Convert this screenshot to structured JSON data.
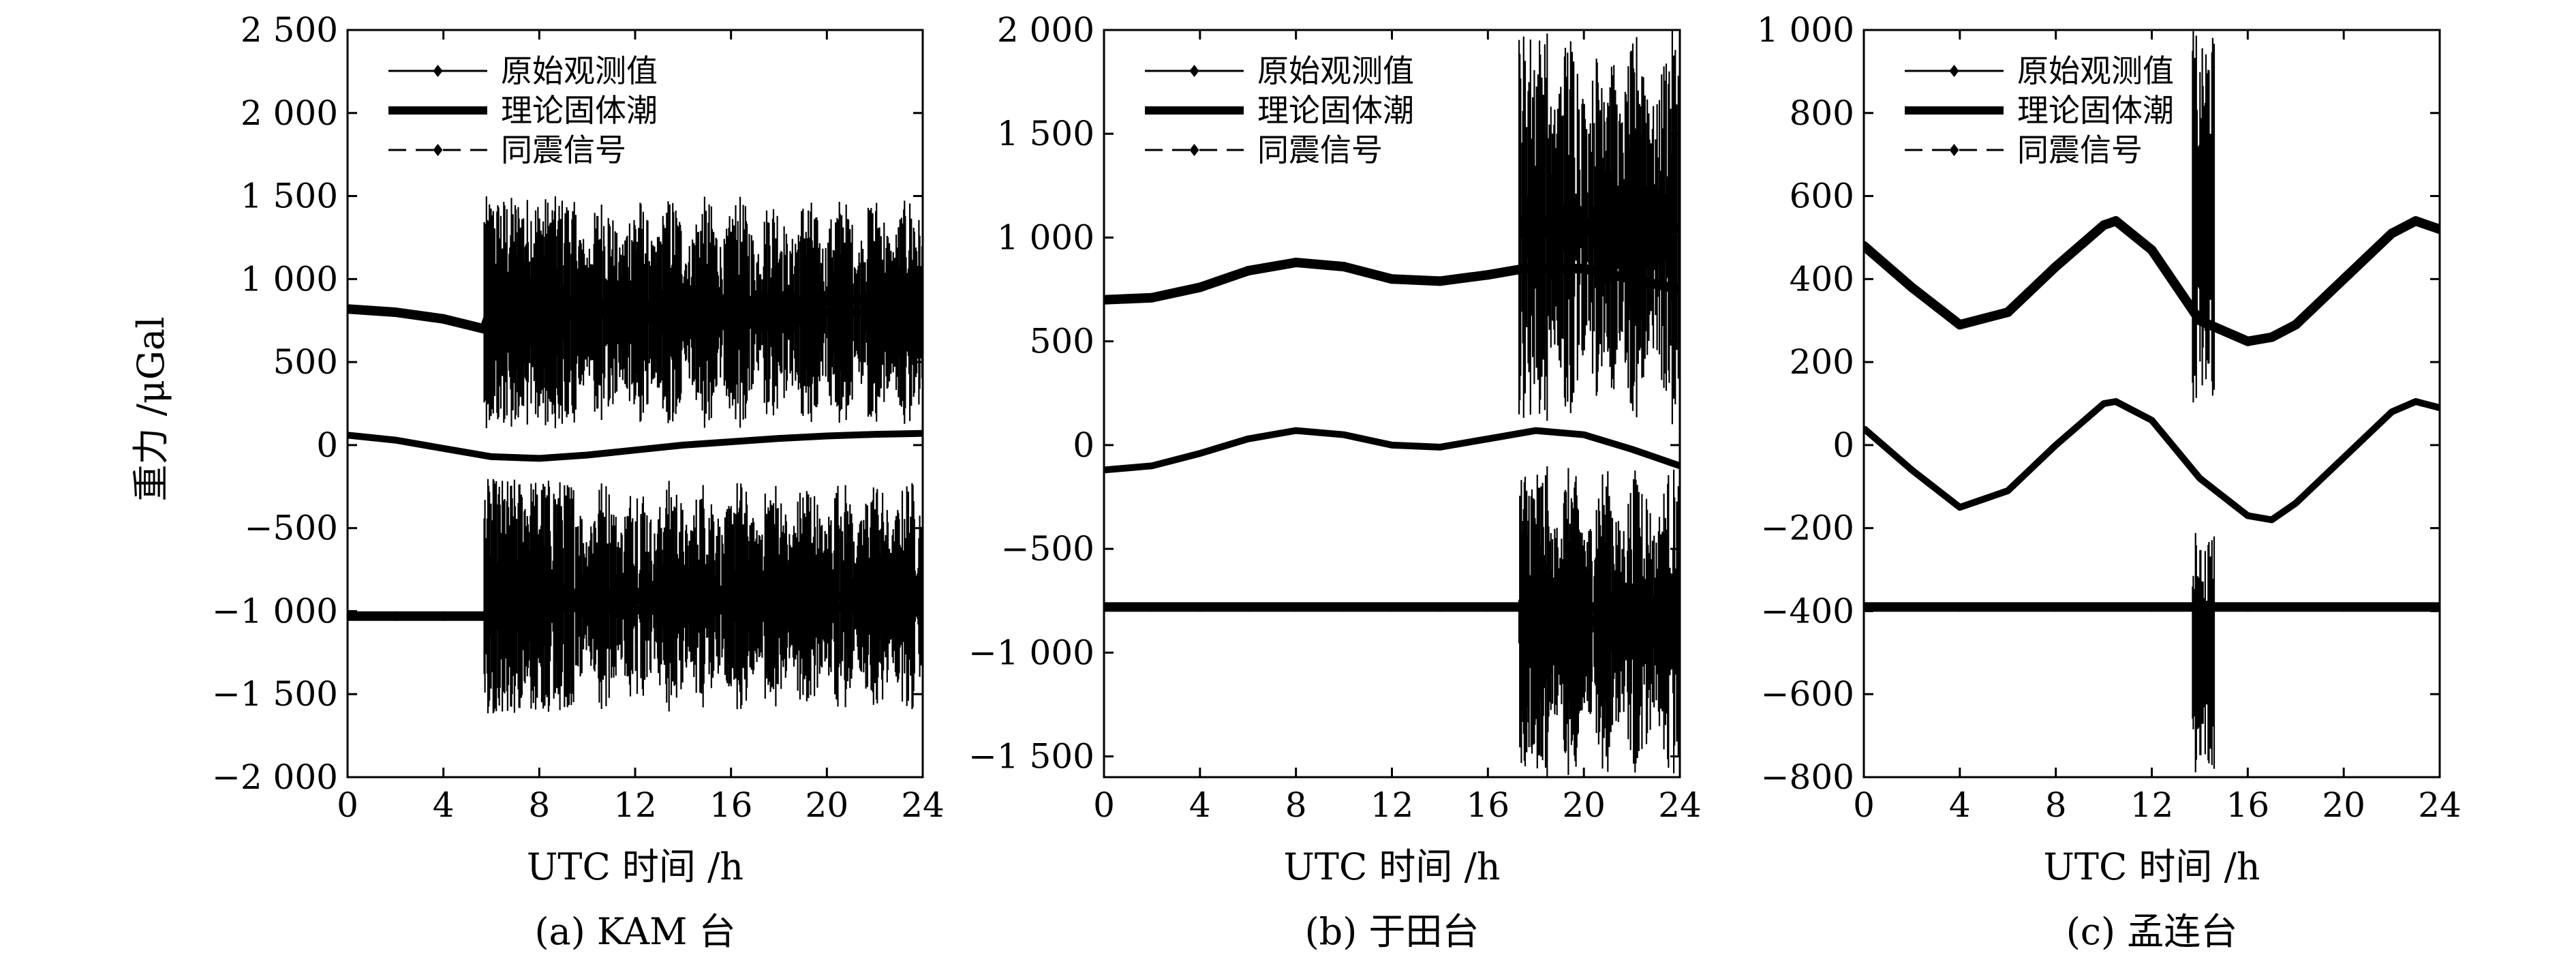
{
  "figure": {
    "ylabel": "重力 /μGal"
  },
  "chart_data": [
    {
      "type": "line",
      "caption": "(a) KAM 台",
      "xlabel": "UTC 时间 /h",
      "ylabel": "重力 /μGal",
      "xlim": [
        0,
        24
      ],
      "ylim": [
        -2000,
        2500
      ],
      "xticks": [
        0,
        4,
        8,
        12,
        16,
        20,
        24
      ],
      "xtick_labels": [
        "0",
        "4",
        "8",
        "12",
        "16",
        "20",
        "24"
      ],
      "yticks": [
        -2000,
        -1500,
        -1000,
        -500,
        0,
        500,
        1000,
        1500,
        2000,
        2500
      ],
      "ytick_labels": [
        "−2 000",
        "−1 500",
        "−1 000",
        "−500",
        "0",
        "500",
        "1 000",
        "1 500",
        "2 000",
        "2 500"
      ],
      "legend": {
        "position": "top-left",
        "entries": [
          "原始观测值",
          "理论固体潮",
          "同震信号"
        ]
      },
      "series": [
        {
          "name": "原始观测值",
          "style": "solid-diamond",
          "x": [
            0,
            2,
            4,
            5.7,
            6,
            8,
            10,
            12,
            14,
            16,
            18,
            20,
            22,
            24
          ],
          "y": [
            820,
            800,
            760,
            700,
            820,
            880,
            860,
            840,
            830,
            850,
            860,
            870,
            880,
            880
          ]
        },
        {
          "name": "理论固体潮",
          "style": "thick",
          "x": [
            0,
            2,
            4,
            6,
            8,
            10,
            12,
            14,
            16,
            18,
            20,
            22,
            24
          ],
          "y": [
            60,
            30,
            -20,
            -70,
            -80,
            -60,
            -30,
            0,
            20,
            40,
            55,
            65,
            70
          ]
        },
        {
          "name": "同震信号",
          "style": "dashed-diamond",
          "x": [
            0,
            2,
            4,
            5.7,
            6,
            8,
            10,
            12,
            14,
            16,
            18,
            20,
            22,
            24
          ],
          "y": [
            -1030,
            -1030,
            -1030,
            -1030,
            -1000,
            -970,
            -980,
            -990,
            -1000,
            -990,
            -980,
            -975,
            -970,
            -970
          ]
        }
      ],
      "noise_bursts": [
        {
          "series": "原始观测值",
          "x_start": 5.7,
          "x_end": 24,
          "y_max": 1500,
          "y_min": 100
        },
        {
          "series": "同震信号",
          "x_start": 5.7,
          "x_end": 24,
          "y_max": -200,
          "y_min": -1620
        }
      ]
    },
    {
      "type": "line",
      "caption": "(b) 于田台",
      "xlabel": "UTC 时间 /h",
      "ylabel": "",
      "xlim": [
        0,
        24
      ],
      "ylim": [
        -1600,
        2000
      ],
      "xticks": [
        0,
        4,
        8,
        12,
        16,
        20,
        24
      ],
      "xtick_labels": [
        "0",
        "4",
        "8",
        "12",
        "16",
        "20",
        "24"
      ],
      "yticks": [
        -1500,
        -1000,
        -500,
        0,
        500,
        1000,
        1500,
        2000
      ],
      "ytick_labels": [
        "−1 500",
        "−1 000",
        "−500",
        "0",
        "500",
        "1 000",
        "1 500",
        "2 000"
      ],
      "legend": {
        "position": "top-left",
        "entries": [
          "原始观测值",
          "理论固体潮",
          "同震信号"
        ]
      },
      "series": [
        {
          "name": "原始观测值",
          "style": "solid-diamond",
          "x": [
            0,
            2,
            4,
            6,
            8,
            10,
            12,
            14,
            16,
            17.5,
            20,
            22,
            24
          ],
          "y": [
            700,
            710,
            760,
            840,
            880,
            860,
            800,
            790,
            820,
            850,
            850,
            800,
            750
          ]
        },
        {
          "name": "理论固体潮",
          "style": "thick",
          "x": [
            0,
            2,
            4,
            6,
            8,
            10,
            12,
            14,
            16,
            18,
            20,
            22,
            24
          ],
          "y": [
            -120,
            -100,
            -40,
            30,
            70,
            50,
            0,
            -10,
            30,
            70,
            50,
            -20,
            -100
          ]
        },
        {
          "name": "同震信号",
          "style": "dashed-diamond",
          "x": [
            0,
            2,
            4,
            6,
            8,
            10,
            12,
            14,
            16,
            17.5,
            20,
            22,
            24
          ],
          "y": [
            -780,
            -780,
            -780,
            -780,
            -780,
            -780,
            -780,
            -780,
            -780,
            -780,
            -780,
            -780,
            -780
          ]
        }
      ],
      "noise_bursts": [
        {
          "series": "原始观测值",
          "x_start": 17.3,
          "x_end": 24,
          "y_max": 2000,
          "y_min": 100
        },
        {
          "series": "同震信号",
          "x_start": 17.3,
          "x_end": 24,
          "y_max": -100,
          "y_min": -1600
        }
      ]
    },
    {
      "type": "line",
      "caption": "(c) 孟连台",
      "xlabel": "UTC 时间 /h",
      "ylabel": "",
      "xlim": [
        0,
        24
      ],
      "ylim": [
        -800,
        1000
      ],
      "xticks": [
        0,
        4,
        8,
        12,
        16,
        20,
        24
      ],
      "xtick_labels": [
        "0",
        "4",
        "8",
        "12",
        "16",
        "20",
        "24"
      ],
      "yticks": [
        -800,
        -600,
        -400,
        -200,
        0,
        200,
        400,
        600,
        800,
        1000
      ],
      "ytick_labels": [
        "−800",
        "−600",
        "−400",
        "−200",
        "0",
        "200",
        "400",
        "600",
        "800",
        "1 000"
      ],
      "legend": {
        "position": "top-left",
        "entries": [
          "原始观测值",
          "理论固体潮",
          "同震信号"
        ]
      },
      "series": [
        {
          "name": "原始观测值",
          "style": "solid-diamond",
          "x": [
            0,
            2,
            4,
            6,
            8,
            10,
            10.5,
            12,
            14,
            16,
            17,
            18,
            20,
            22,
            23,
            24
          ],
          "y": [
            480,
            380,
            290,
            320,
            430,
            530,
            540,
            470,
            300,
            250,
            260,
            290,
            400,
            510,
            540,
            520
          ]
        },
        {
          "name": "理论固体潮",
          "style": "thick",
          "x": [
            0,
            2,
            4,
            6,
            8,
            10,
            10.5,
            12,
            14,
            16,
            17,
            18,
            20,
            22,
            23,
            24
          ],
          "y": [
            40,
            -60,
            -150,
            -110,
            0,
            100,
            105,
            60,
            -80,
            -170,
            -180,
            -140,
            -30,
            80,
            105,
            90
          ]
        },
        {
          "name": "同震信号",
          "style": "dashed-diamond",
          "x": [
            0,
            4,
            8,
            12,
            16,
            20,
            24
          ],
          "y": [
            -390,
            -390,
            -390,
            -390,
            -390,
            -390,
            -390
          ]
        }
      ],
      "noise_bursts": [
        {
          "series": "原始观测值",
          "x_start": 13.7,
          "x_end": 14.6,
          "y_max": 1000,
          "y_min": 100
        },
        {
          "series": "同震信号",
          "x_start": 13.7,
          "x_end": 14.6,
          "y_max": -200,
          "y_min": -800
        }
      ]
    }
  ]
}
